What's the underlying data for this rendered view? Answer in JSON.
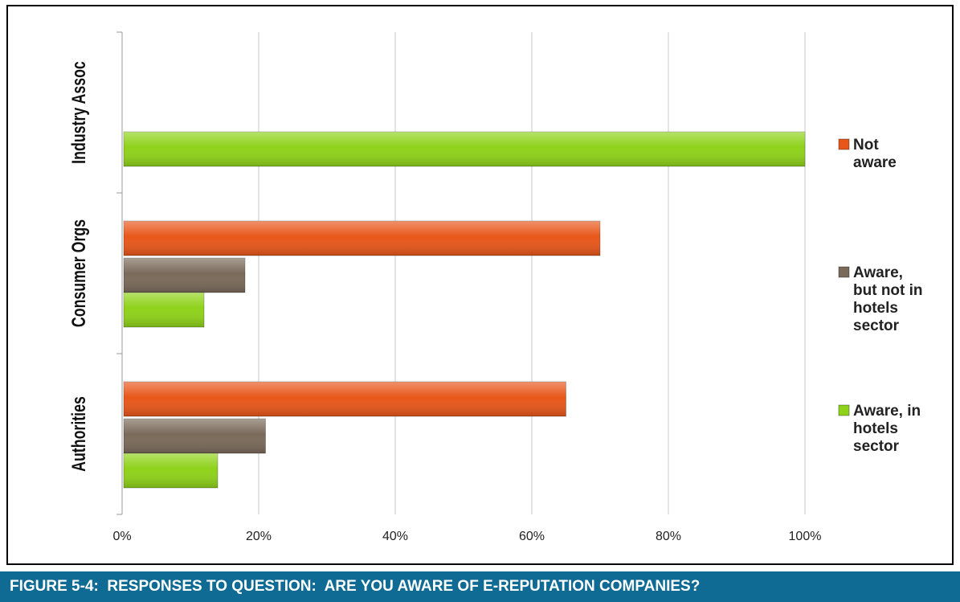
{
  "caption": "FIGURE 5-4:  RESPONSES TO QUESTION:  ARE YOU AWARE OF E-REPUTATION COMPANIES?",
  "colors": {
    "not_aware": "#e8571a",
    "aware_not_hotels": "#7a6a5a",
    "aware_hotels": "#8fd21a",
    "grid": "#c8c8c8",
    "caption_bg": "#0f6b93"
  },
  "chart_data": {
    "type": "bar",
    "orientation": "horizontal",
    "title": "",
    "xlabel": "",
    "ylabel": "",
    "categories": [
      "Authorities",
      "Consumer Orgs",
      "Industry Assoc"
    ],
    "x_ticks": [
      "0%",
      "20%",
      "40%",
      "60%",
      "80%",
      "100%"
    ],
    "xlim": [
      0,
      100
    ],
    "grid": true,
    "legend_position": "right",
    "series": [
      {
        "name": "Not aware",
        "legend_lines": [
          "Not",
          "aware"
        ],
        "color": "#e8571a",
        "values": [
          65,
          70,
          0
        ]
      },
      {
        "name": "Aware, but not in hotels sector",
        "legend_lines": [
          "Aware,",
          "but not in",
          "hotels",
          "sector"
        ],
        "color": "#7a6a5a",
        "values": [
          21,
          18,
          0
        ]
      },
      {
        "name": "Aware, in hotels sector",
        "legend_lines": [
          "Aware, in",
          "hotels",
          "sector"
        ],
        "color": "#8fd21a",
        "values": [
          14,
          12,
          100
        ]
      }
    ]
  }
}
